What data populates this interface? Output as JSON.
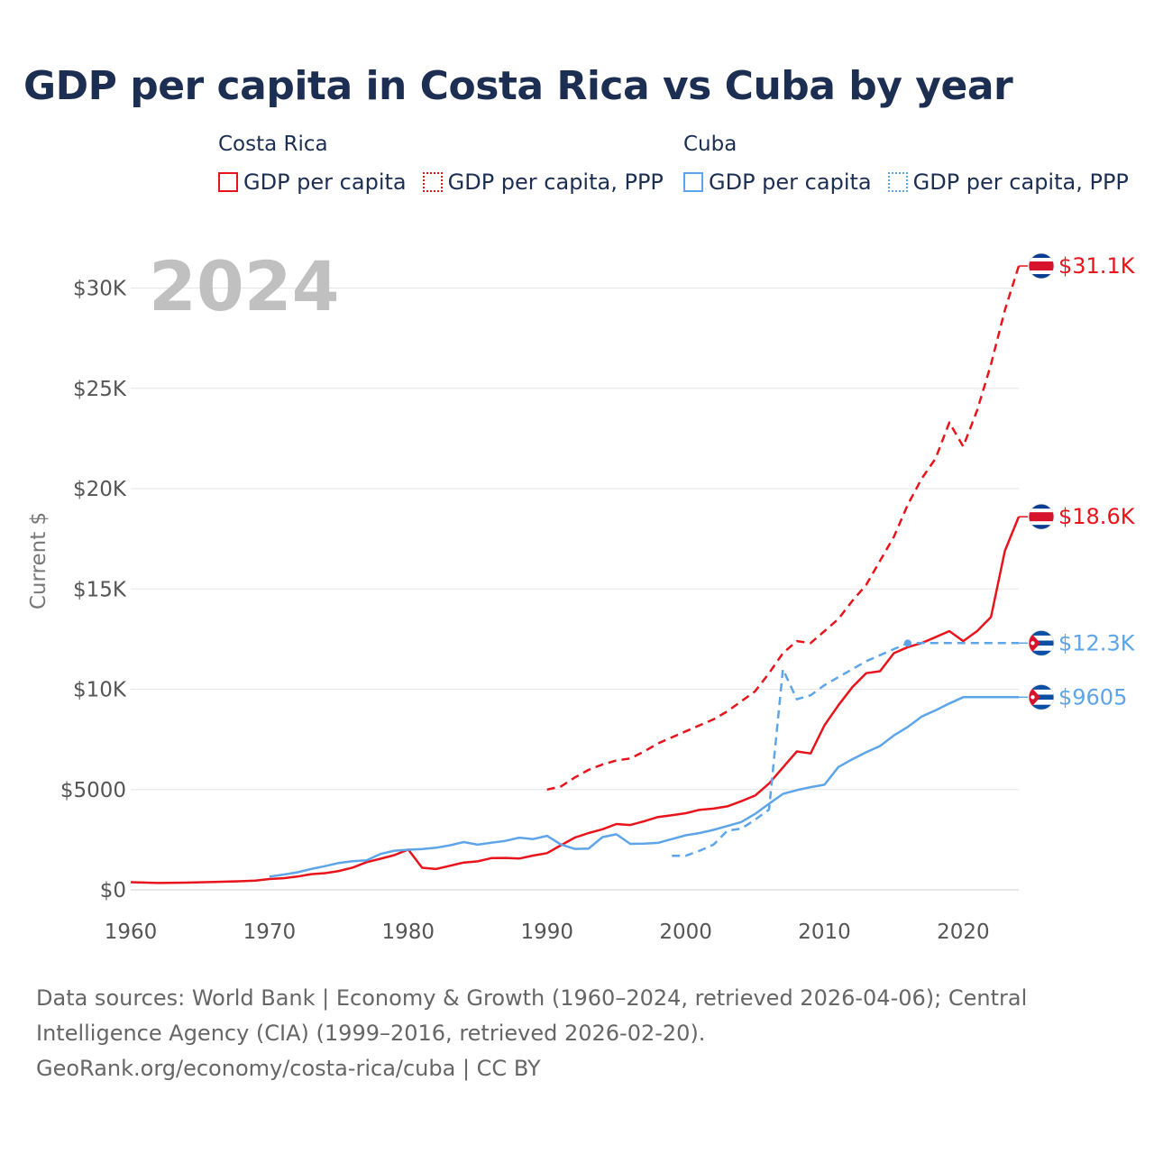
{
  "title": "GDP per capita in Costa Rica vs Cuba by year",
  "legend": {
    "groups": [
      {
        "name": "Costa Rica",
        "color": "#e8141c",
        "items": [
          {
            "label": "GDP per capita",
            "style": "solid"
          },
          {
            "label": "GDP per capita, PPP",
            "style": "dotted"
          }
        ]
      },
      {
        "name": "Cuba",
        "color": "#5da5e8",
        "items": [
          {
            "label": "GDP per capita",
            "style": "solid"
          },
          {
            "label": "GDP per capita, PPP",
            "style": "dotted"
          }
        ]
      }
    ]
  },
  "year_label": "2024",
  "footer": {
    "sources": "Data sources: World Bank | Economy & Growth (1960–2024, retrieved 2026-04-06); Central Intelligence Agency (CIA) (1999–2016, retrieved 2026-02-20).",
    "attribution": "GeoRank.org/economy/costa-rica/cuba | CC BY"
  },
  "chart_data": {
    "type": "line",
    "title": "GDP per capita in Costa Rica vs Cuba by year",
    "xlabel": "",
    "ylabel": "Current $",
    "xlim": [
      1960,
      2024
    ],
    "ylim": [
      0,
      32000
    ],
    "x_ticks": [
      1960,
      1970,
      1980,
      1990,
      2000,
      2010,
      2020
    ],
    "y_ticks": [
      {
        "value": 0,
        "label": "$0"
      },
      {
        "value": 5000,
        "label": "$5000"
      },
      {
        "value": 10000,
        "label": "$10K"
      },
      {
        "value": 15000,
        "label": "$15K"
      },
      {
        "value": 20000,
        "label": "$20K"
      },
      {
        "value": 25000,
        "label": "$25K"
      },
      {
        "value": 30000,
        "label": "$30K"
      }
    ],
    "series": [
      {
        "name": "Costa Rica GDP per capita",
        "color": "#e8141c",
        "dash": "solid",
        "end_label": "$18.6K",
        "end_value": 18600,
        "flag": "costa-rica",
        "points": [
          [
            1960,
            380
          ],
          [
            1962,
            340
          ],
          [
            1964,
            360
          ],
          [
            1966,
            390
          ],
          [
            1968,
            430
          ],
          [
            1969,
            460
          ],
          [
            1970,
            540
          ],
          [
            1971,
            580
          ],
          [
            1972,
            660
          ],
          [
            1973,
            780
          ],
          [
            1974,
            830
          ],
          [
            1975,
            940
          ],
          [
            1976,
            1110
          ],
          [
            1977,
            1380
          ],
          [
            1978,
            1550
          ],
          [
            1979,
            1730
          ],
          [
            1980,
            2010
          ],
          [
            1981,
            1100
          ],
          [
            1982,
            1040
          ],
          [
            1983,
            1200
          ],
          [
            1984,
            1360
          ],
          [
            1985,
            1420
          ],
          [
            1986,
            1580
          ],
          [
            1987,
            1590
          ],
          [
            1988,
            1560
          ],
          [
            1989,
            1710
          ],
          [
            1990,
            1830
          ],
          [
            1991,
            2220
          ],
          [
            1992,
            2600
          ],
          [
            1993,
            2830
          ],
          [
            1994,
            3020
          ],
          [
            1995,
            3280
          ],
          [
            1996,
            3230
          ],
          [
            1997,
            3420
          ],
          [
            1998,
            3630
          ],
          [
            1999,
            3720
          ],
          [
            2000,
            3820
          ],
          [
            2001,
            3990
          ],
          [
            2002,
            4050
          ],
          [
            2003,
            4160
          ],
          [
            2004,
            4420
          ],
          [
            2005,
            4700
          ],
          [
            2006,
            5300
          ],
          [
            2007,
            6100
          ],
          [
            2008,
            6900
          ],
          [
            2009,
            6800
          ],
          [
            2010,
            8200
          ],
          [
            2011,
            9200
          ],
          [
            2012,
            10100
          ],
          [
            2013,
            10800
          ],
          [
            2014,
            10900
          ],
          [
            2015,
            11800
          ],
          [
            2016,
            12100
          ],
          [
            2017,
            12300
          ],
          [
            2018,
            12600
          ],
          [
            2019,
            12900
          ],
          [
            2020,
            12400
          ],
          [
            2021,
            12900
          ],
          [
            2022,
            13600
          ],
          [
            2023,
            16900
          ],
          [
            2024,
            18600
          ]
        ]
      },
      {
        "name": "Costa Rica GDP per capita, PPP",
        "color": "#e8141c",
        "dash": "dashed",
        "end_label": "$31.1K",
        "end_value": 31100,
        "flag": "costa-rica",
        "points": [
          [
            1990,
            5000
          ],
          [
            1991,
            5150
          ],
          [
            1992,
            5600
          ],
          [
            1993,
            5980
          ],
          [
            1994,
            6250
          ],
          [
            1995,
            6450
          ],
          [
            1996,
            6550
          ],
          [
            1997,
            6900
          ],
          [
            1998,
            7300
          ],
          [
            1999,
            7600
          ],
          [
            2000,
            7900
          ],
          [
            2001,
            8200
          ],
          [
            2002,
            8500
          ],
          [
            2003,
            8900
          ],
          [
            2004,
            9400
          ],
          [
            2005,
            9900
          ],
          [
            2006,
            10800
          ],
          [
            2007,
            11800
          ],
          [
            2008,
            12400
          ],
          [
            2009,
            12300
          ],
          [
            2010,
            12900
          ],
          [
            2011,
            13500
          ],
          [
            2012,
            14400
          ],
          [
            2013,
            15200
          ],
          [
            2014,
            16400
          ],
          [
            2015,
            17600
          ],
          [
            2016,
            19200
          ],
          [
            2017,
            20500
          ],
          [
            2018,
            21500
          ],
          [
            2019,
            23300
          ],
          [
            2020,
            22100
          ],
          [
            2021,
            23900
          ],
          [
            2022,
            26200
          ],
          [
            2023,
            28900
          ],
          [
            2024,
            31100
          ]
        ]
      },
      {
        "name": "Cuba GDP per capita",
        "color": "#5da5e8",
        "dash": "solid",
        "end_label": "$9605",
        "end_value": 9605,
        "flag": "cuba",
        "points": [
          [
            1970,
            660
          ],
          [
            1971,
            760
          ],
          [
            1972,
            870
          ],
          [
            1973,
            1040
          ],
          [
            1974,
            1180
          ],
          [
            1975,
            1340
          ],
          [
            1976,
            1430
          ],
          [
            1977,
            1470
          ],
          [
            1978,
            1790
          ],
          [
            1979,
            1950
          ],
          [
            1980,
            2000
          ],
          [
            1981,
            2030
          ],
          [
            1982,
            2100
          ],
          [
            1983,
            2220
          ],
          [
            1984,
            2380
          ],
          [
            1985,
            2250
          ],
          [
            1986,
            2350
          ],
          [
            1987,
            2440
          ],
          [
            1988,
            2600
          ],
          [
            1989,
            2530
          ],
          [
            1990,
            2690
          ],
          [
            1991,
            2260
          ],
          [
            1992,
            2040
          ],
          [
            1993,
            2060
          ],
          [
            1994,
            2630
          ],
          [
            1995,
            2770
          ],
          [
            1996,
            2290
          ],
          [
            1997,
            2300
          ],
          [
            1998,
            2340
          ],
          [
            1999,
            2530
          ],
          [
            2000,
            2720
          ],
          [
            2001,
            2830
          ],
          [
            2002,
            2990
          ],
          [
            2003,
            3180
          ],
          [
            2004,
            3380
          ],
          [
            2005,
            3790
          ],
          [
            2006,
            4290
          ],
          [
            2007,
            4780
          ],
          [
            2008,
            4970
          ],
          [
            2009,
            5120
          ],
          [
            2010,
            5240
          ],
          [
            2011,
            6120
          ],
          [
            2012,
            6510
          ],
          [
            2013,
            6860
          ],
          [
            2014,
            7170
          ],
          [
            2015,
            7700
          ],
          [
            2016,
            8120
          ],
          [
            2017,
            8640
          ],
          [
            2018,
            8950
          ],
          [
            2019,
            9290
          ],
          [
            2020,
            9605
          ],
          [
            2024,
            9605
          ]
        ]
      },
      {
        "name": "Cuba GDP per capita, PPP",
        "color": "#5da5e8",
        "dash": "dashed",
        "end_label": "$12.3K",
        "end_value": 12300,
        "flag": "cuba",
        "points": [
          [
            1999,
            1700
          ],
          [
            2000,
            1700
          ],
          [
            2001,
            1950
          ],
          [
            2002,
            2250
          ],
          [
            2003,
            2950
          ],
          [
            2004,
            3050
          ],
          [
            2005,
            3500
          ],
          [
            2006,
            4000
          ],
          [
            2007,
            11000
          ],
          [
            2008,
            9500
          ],
          [
            2009,
            9700
          ],
          [
            2010,
            10200
          ],
          [
            2011,
            10600
          ],
          [
            2012,
            11000
          ],
          [
            2013,
            11400
          ],
          [
            2014,
            11700
          ],
          [
            2015,
            12000
          ],
          [
            2016,
            12300
          ],
          [
            2024,
            12300
          ]
        ]
      }
    ]
  }
}
